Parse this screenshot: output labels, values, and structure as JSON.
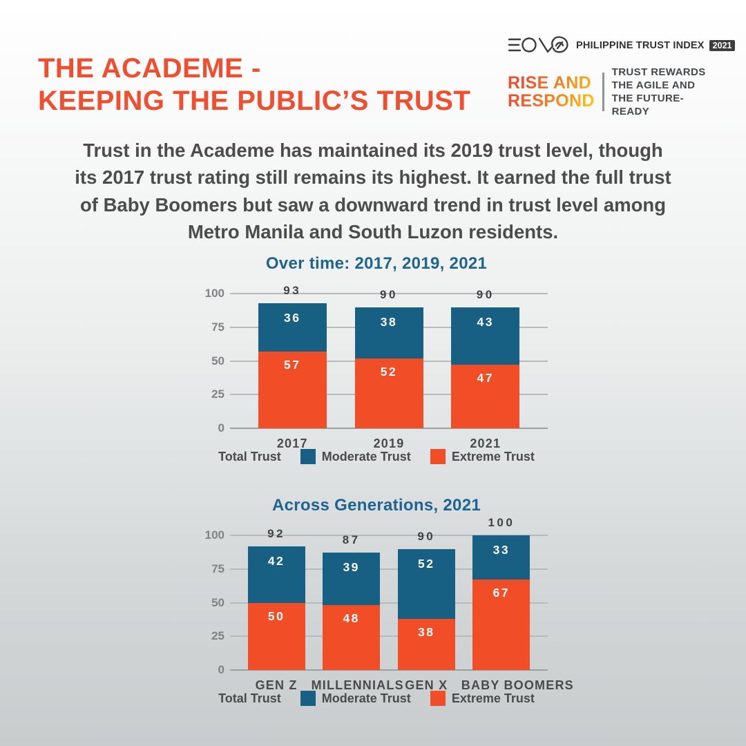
{
  "page": {
    "title_line1": "THE ACADEME -",
    "title_line2": "KEEPING THE PUBLIC’S TRUST",
    "paragraph": "Trust in the Academe has maintained its 2019 trust level, though its 2017 trust rating still remains its highest. It earned the full trust of Baby Boomers but saw a downward trend in trust level among Metro Manila and South Luzon residents."
  },
  "brand": {
    "eon_name": "EON",
    "index_label": "PHILIPPINE TRUST INDEX",
    "year_badge": "2021",
    "campaign_line1": "RISE AND",
    "campaign_line2": "RESPOND",
    "tagline_line1": "TRUST REWARDS",
    "tagline_line2": "THE AGILE AND",
    "tagline_line3": "THE FUTURE-READY"
  },
  "legend": {
    "total": "Total Trust",
    "moderate": "Moderate Trust",
    "extreme": "Extreme Trust"
  },
  "colors": {
    "accent_orange": "#F14D26",
    "bar_blue": "#185F84",
    "chart_title_blue": "#1D6491",
    "title_orange": "#F04E2E",
    "text_dark": "#4C4C4C",
    "background_bottom": "#C8CCCD"
  },
  "chart_data": [
    {
      "type": "bar",
      "stacked": true,
      "title": "Over time: 2017, 2019, 2021",
      "categories": [
        "2017",
        "2019",
        "2021"
      ],
      "series": [
        {
          "name": "Extreme Trust",
          "color": "#F14D26",
          "values": [
            57,
            52,
            47
          ]
        },
        {
          "name": "Moderate Trust",
          "color": "#185F84",
          "values": [
            36,
            38,
            43
          ]
        }
      ],
      "totals": [
        93,
        90,
        90
      ],
      "ylabel": "",
      "xlabel": "",
      "ylim": [
        0,
        100
      ],
      "yticks": [
        0,
        25,
        50,
        75,
        100
      ],
      "grid": true,
      "legend_position": "bottom"
    },
    {
      "type": "bar",
      "stacked": true,
      "title": "Across Generations, 2021",
      "categories": [
        "GEN Z",
        "MILLENNIALS",
        "GEN X",
        "BABY BOOMERS"
      ],
      "series": [
        {
          "name": "Extreme Trust",
          "color": "#F14D26",
          "values": [
            50,
            48,
            38,
            67
          ]
        },
        {
          "name": "Moderate Trust",
          "color": "#185F84",
          "values": [
            42,
            39,
            52,
            33
          ]
        }
      ],
      "totals": [
        92,
        87,
        90,
        100
      ],
      "ylabel": "",
      "xlabel": "",
      "ylim": [
        0,
        100
      ],
      "yticks": [
        0,
        25,
        50,
        75,
        100
      ],
      "grid": true,
      "legend_position": "bottom"
    }
  ]
}
